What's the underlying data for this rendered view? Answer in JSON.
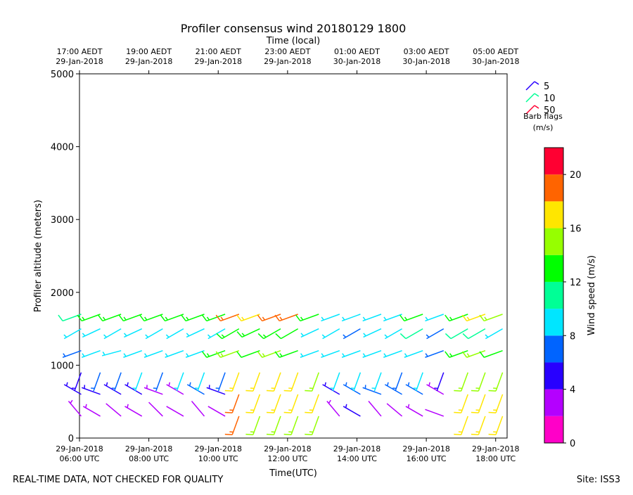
{
  "chart_data": {
    "type": "barbs",
    "title": "Profiler consensus wind 20180129 1800",
    "top_axis_label": "Time (local)",
    "x_label": "Time(UTC)",
    "y_label": "Profiler altitude (meters)",
    "footer_left": "REAL-TIME DATA, NOT CHECKED FOR QUALITY",
    "footer_right": "Site: ISS3",
    "xlim": [
      6.0,
      18.33
    ],
    "xticks": [
      {
        "value": 6,
        "label": "29-Jan-2018\n06:00 UTC"
      },
      {
        "value": 8,
        "label": "29-Jan-2018\n08:00 UTC"
      },
      {
        "value": 10,
        "label": "29-Jan-2018\n10:00 UTC"
      },
      {
        "value": 12,
        "label": "29-Jan-2018\n12:00 UTC"
      },
      {
        "value": 14,
        "label": "29-Jan-2018\n14:00 UTC"
      },
      {
        "value": 16,
        "label": "29-Jan-2018\n16:00 UTC"
      },
      {
        "value": 18,
        "label": "29-Jan-2018\n18:00 UTC"
      }
    ],
    "top_xticks": [
      {
        "value": 6,
        "label": "17:00 AEDT\n29-Jan-2018"
      },
      {
        "value": 8,
        "label": "19:00 AEDT\n29-Jan-2018"
      },
      {
        "value": 10,
        "label": "21:00 AEDT\n29-Jan-2018"
      },
      {
        "value": 12,
        "label": "23:00 AEDT\n29-Jan-2018"
      },
      {
        "value": 14,
        "label": "01:00 AEDT\n30-Jan-2018"
      },
      {
        "value": 16,
        "label": "03:00 AEDT\n30-Jan-2018"
      },
      {
        "value": 18,
        "label": "05:00 AEDT\n30-Jan-2018"
      }
    ],
    "ylim": [
      0,
      5000
    ],
    "yticks": [
      0,
      1000,
      2000,
      3000,
      4000,
      5000
    ],
    "x": [
      6.05,
      6.6,
      7.2,
      7.8,
      8.4,
      9.0,
      9.6,
      10.2,
      10.6,
      11.2,
      11.8,
      12.3,
      12.9,
      13.5,
      14.1,
      14.7,
      15.3,
      15.9,
      16.5,
      17.2,
      17.7,
      18.2
    ],
    "altitudes": [
      300,
      600,
      900,
      1200,
      1500,
      1700
    ],
    "speed": [
      [
        3,
        4,
        5,
        6,
        9,
        11
      ],
      [
        3,
        5,
        6,
        8,
        9,
        13
      ],
      [
        2,
        4,
        7,
        9,
        9,
        13
      ],
      [
        3,
        5,
        8,
        8,
        9,
        13
      ],
      [
        2,
        3,
        7,
        8,
        9,
        13
      ],
      [
        2,
        3,
        8,
        9,
        9,
        13
      ],
      [
        2,
        6,
        8,
        9,
        9,
        13
      ],
      [
        2,
        5,
        7,
        13,
        9,
        13
      ],
      [
        18,
        18,
        16,
        14,
        13,
        19
      ],
      [
        14,
        16,
        17,
        12,
        13,
        17
      ],
      [
        14,
        17,
        16,
        15,
        13,
        18
      ],
      [
        15,
        16,
        16,
        13,
        12,
        19
      ],
      [
        14,
        16,
        15,
        9,
        9,
        13
      ],
      [
        3,
        4,
        8,
        9,
        9,
        9
      ],
      [
        5,
        6,
        9,
        9,
        7,
        9
      ],
      [
        2,
        7,
        8,
        9,
        9,
        9
      ],
      [
        2,
        6,
        7,
        9,
        9,
        9
      ],
      [
        3,
        6,
        8,
        8,
        11,
        13
      ],
      [
        2,
        3,
        4,
        6,
        7,
        9
      ],
      [
        16,
        17,
        15,
        13,
        11,
        13
      ],
      [
        17,
        16,
        14,
        15,
        11,
        17
      ],
      [
        17,
        16,
        15,
        12,
        9,
        15
      ]
    ],
    "direction": [
      [
        320,
        300,
        200,
        250,
        240,
        250
      ],
      [
        300,
        290,
        200,
        250,
        245,
        250
      ],
      [
        310,
        300,
        200,
        255,
        240,
        250
      ],
      [
        300,
        300,
        200,
        250,
        245,
        250
      ],
      [
        315,
        290,
        200,
        250,
        240,
        250
      ],
      [
        300,
        300,
        200,
        250,
        240,
        250
      ],
      [
        320,
        300,
        200,
        250,
        245,
        250
      ],
      [
        300,
        290,
        200,
        250,
        240,
        250
      ],
      [
        200,
        200,
        200,
        250,
        240,
        250
      ],
      [
        200,
        200,
        200,
        250,
        245,
        250
      ],
      [
        200,
        200,
        200,
        250,
        240,
        250
      ],
      [
        200,
        200,
        200,
        250,
        240,
        250
      ],
      [
        200,
        200,
        200,
        250,
        245,
        250
      ],
      [
        320,
        300,
        200,
        250,
        240,
        250
      ],
      [
        300,
        300,
        200,
        250,
        240,
        250
      ],
      [
        320,
        290,
        200,
        250,
        245,
        250
      ],
      [
        310,
        300,
        200,
        250,
        240,
        250
      ],
      [
        300,
        300,
        200,
        250,
        240,
        250
      ],
      [
        290,
        300,
        200,
        250,
        240,
        250
      ],
      [
        200,
        200,
        200,
        250,
        240,
        250
      ],
      [
        200,
        200,
        200,
        250,
        240,
        250
      ],
      [
        200,
        200,
        200,
        250,
        240,
        250
      ]
    ],
    "colorbar_label": "Wind speed (m/s)",
    "clim": [
      0,
      22
    ],
    "colorbar_ticks": [
      0,
      4,
      8,
      12,
      16,
      20
    ],
    "colormap": [
      "#ff00c8",
      "#b400ff",
      "#2800ff",
      "#0064ff",
      "#00e6ff",
      "#00ff96",
      "#00ff00",
      "#96ff00",
      "#ffe600",
      "#ff6400",
      "#ff0032"
    ],
    "legend_title": "Barb flags\n(m/s)",
    "legend": [
      {
        "value": 5,
        "color": "#2800ff"
      },
      {
        "value": 10,
        "color": "#00ff96"
      },
      {
        "value": 50,
        "color": "#ff0032"
      }
    ]
  }
}
